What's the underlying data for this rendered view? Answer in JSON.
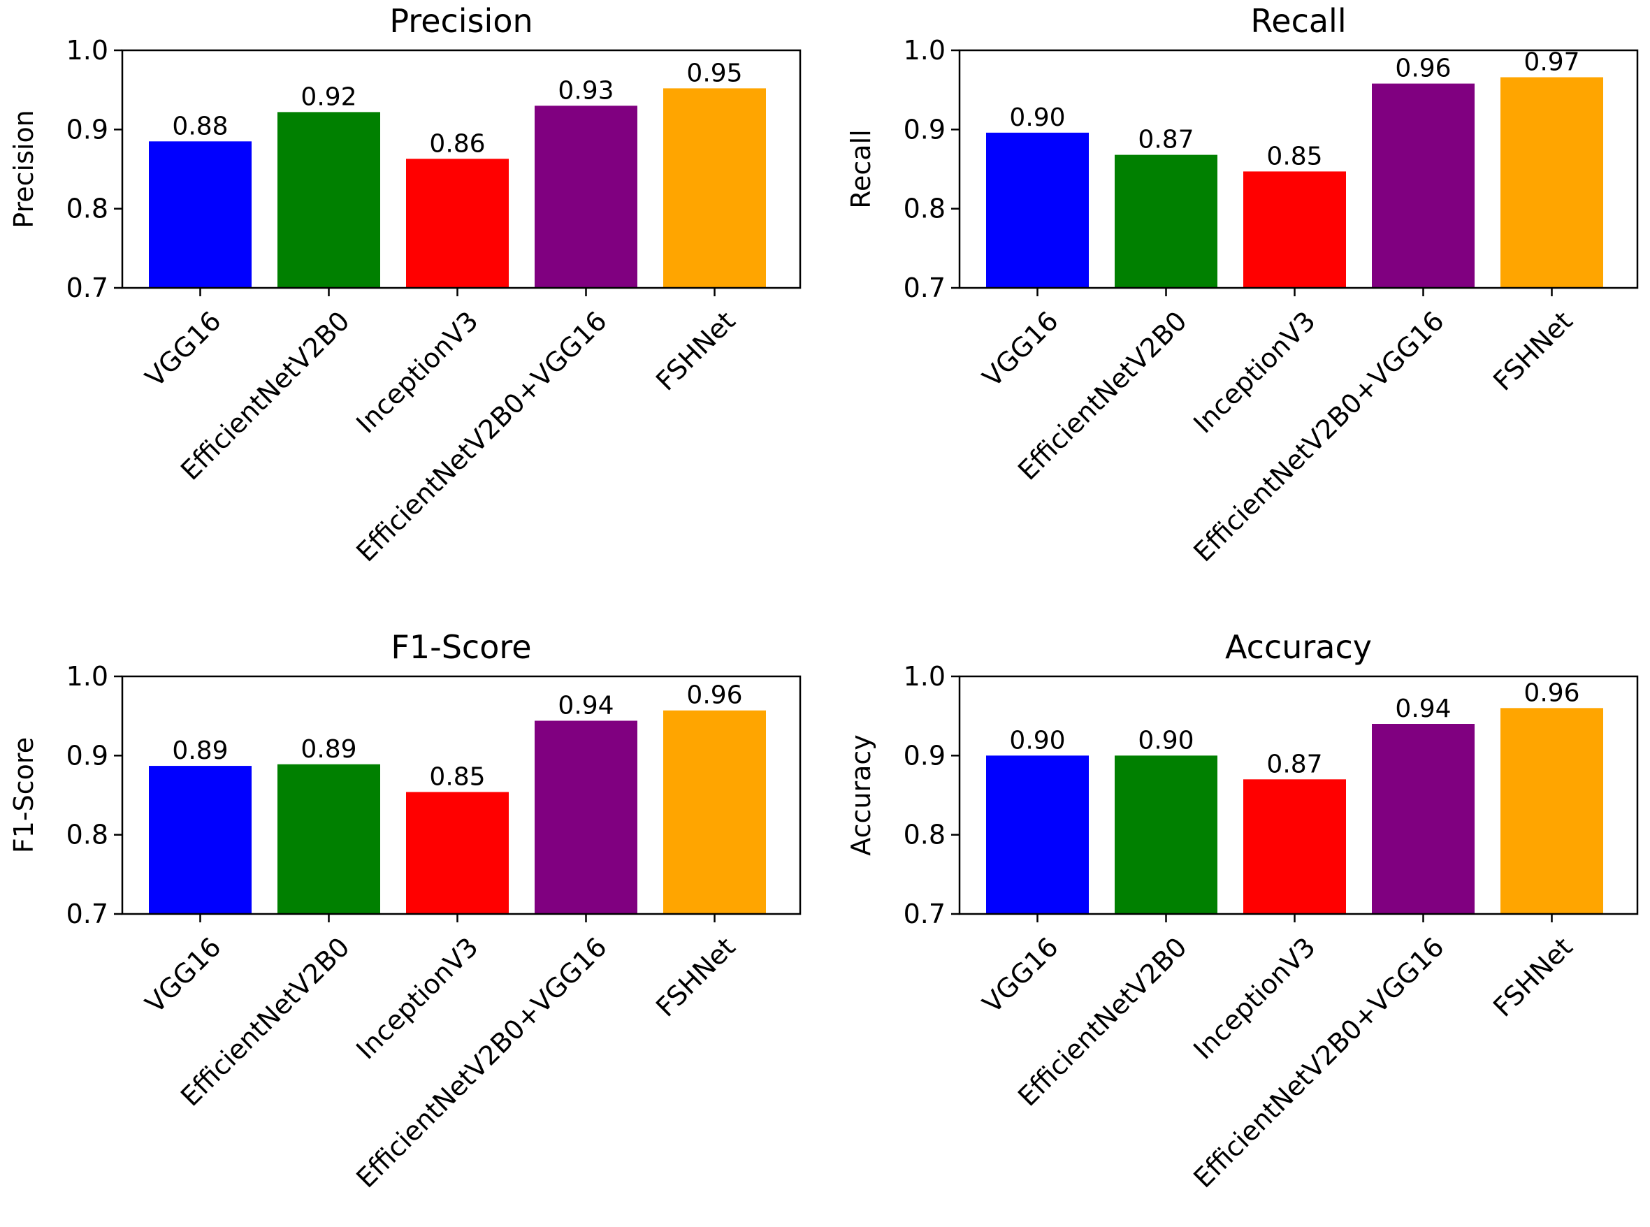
{
  "chart_data": [
    {
      "type": "bar",
      "title": "Precision",
      "ylabel": "Precision",
      "xlabel": "",
      "categories": [
        "VGG16",
        "EfficientNetV2B0",
        "InceptionV3",
        "EfficientNetV2B0+VGG16",
        "FSHNet"
      ],
      "values": [
        0.885,
        0.922,
        0.863,
        0.93,
        0.952
      ],
      "value_labels": [
        "0.88",
        "0.92",
        "0.86",
        "0.93",
        "0.95"
      ],
      "ylim": [
        0.7,
        1.0
      ],
      "yticks": [
        "0.7",
        "0.8",
        "0.9",
        "1.0"
      ],
      "grid": false,
      "legend": false
    },
    {
      "type": "bar",
      "title": "Recall",
      "ylabel": "Recall",
      "xlabel": "",
      "categories": [
        "VGG16",
        "EfficientNetV2B0",
        "InceptionV3",
        "EfficientNetV2B0+VGG16",
        "FSHNet"
      ],
      "values": [
        0.896,
        0.868,
        0.847,
        0.958,
        0.966
      ],
      "value_labels": [
        "0.90",
        "0.87",
        "0.85",
        "0.96",
        "0.97"
      ],
      "ylim": [
        0.7,
        1.0
      ],
      "yticks": [
        "0.7",
        "0.8",
        "0.9",
        "1.0"
      ],
      "grid": false,
      "legend": false
    },
    {
      "type": "bar",
      "title": "F1-Score",
      "ylabel": "F1-Score",
      "xlabel": "",
      "categories": [
        "VGG16",
        "EfficientNetV2B0",
        "InceptionV3",
        "EfficientNetV2B0+VGG16",
        "FSHNet"
      ],
      "values": [
        0.887,
        0.889,
        0.854,
        0.944,
        0.957
      ],
      "value_labels": [
        "0.89",
        "0.89",
        "0.85",
        "0.94",
        "0.96"
      ],
      "ylim": [
        0.7,
        1.0
      ],
      "yticks": [
        "0.7",
        "0.8",
        "0.9",
        "1.0"
      ],
      "grid": false,
      "legend": false
    },
    {
      "type": "bar",
      "title": "Accuracy",
      "ylabel": "Accuracy",
      "xlabel": "",
      "categories": [
        "VGG16",
        "EfficientNetV2B0",
        "InceptionV3",
        "EfficientNetV2B0+VGG16",
        "FSHNet"
      ],
      "values": [
        0.9,
        0.9,
        0.87,
        0.94,
        0.96
      ],
      "value_labels": [
        "0.90",
        "0.90",
        "0.87",
        "0.94",
        "0.96"
      ],
      "ylim": [
        0.7,
        1.0
      ],
      "yticks": [
        "0.7",
        "0.8",
        "0.9",
        "1.0"
      ],
      "grid": false,
      "legend": false
    }
  ],
  "colors": {
    "bars": [
      "#0000ff",
      "#008000",
      "#ff0000",
      "#800080",
      "#ffa500"
    ],
    "axis": "#000000",
    "background": "#ffffff"
  }
}
